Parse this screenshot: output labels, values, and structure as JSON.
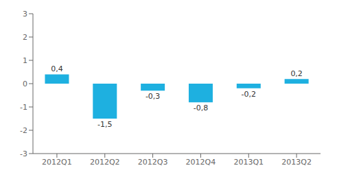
{
  "chart_data": {
    "type": "bar",
    "categories": [
      "2012Q1",
      "2012Q2",
      "2012Q3",
      "2012Q4",
      "2013Q1",
      "2013Q2"
    ],
    "values": [
      0.4,
      -1.5,
      -0.3,
      -0.8,
      -0.2,
      0.2
    ],
    "value_labels": [
      "0,4",
      "-1,5",
      "-0,3",
      "-0,8",
      "-0,2",
      "0,2"
    ],
    "color": "#1eb0e0",
    "ylim": [
      -3,
      3
    ],
    "yticks": [
      -3,
      -2,
      -1,
      0,
      1,
      2,
      3
    ],
    "grid": false,
    "data_labels": true
  }
}
